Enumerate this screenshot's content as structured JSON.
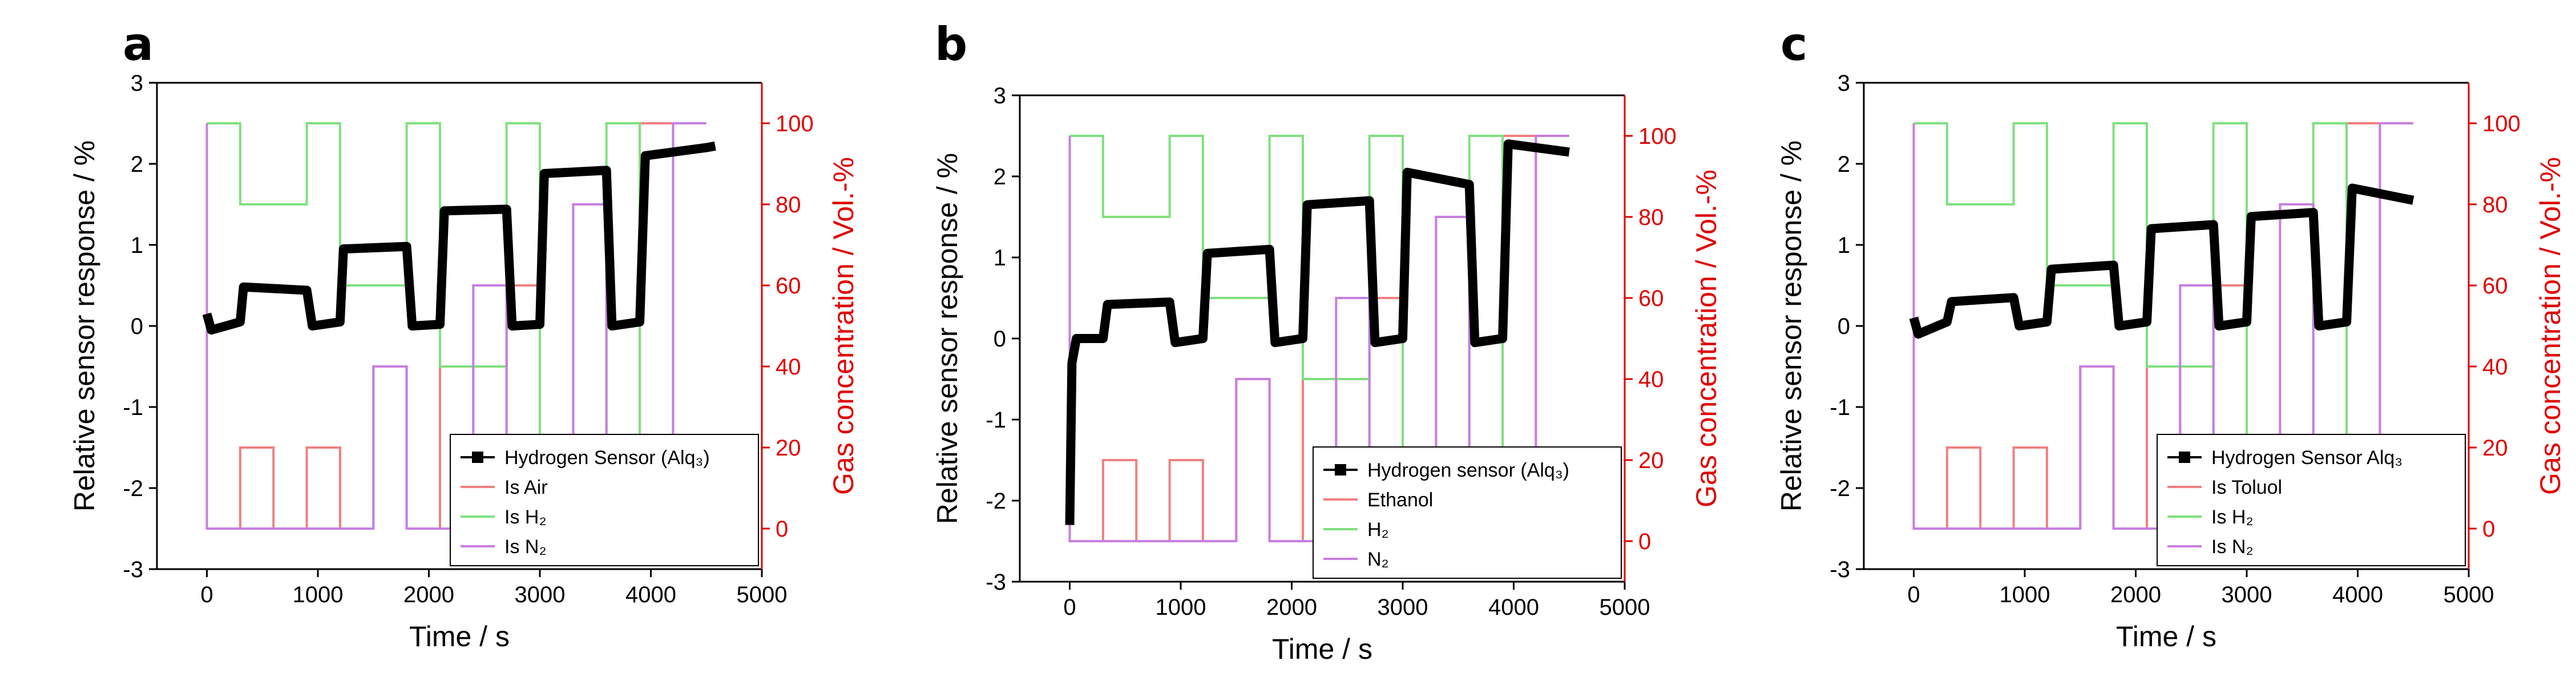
{
  "chart_data": [
    {
      "panel": "a",
      "type": "line",
      "xlabel": "Time / s",
      "ylabel": "Relative sensor response / %",
      "y2label": "Gas concentration / Vol.-%",
      "xlim": [
        -450,
        5000
      ],
      "ylim": [
        -3,
        3
      ],
      "y2lim": [
        -10,
        110
      ],
      "xticks": [
        "0",
        "1000",
        "2000",
        "3000",
        "4000",
        "5000"
      ],
      "yticks": [
        "-3",
        "-2",
        "-1",
        "0",
        "1",
        "2",
        "3"
      ],
      "y2ticks": [
        "0",
        "20",
        "40",
        "60",
        "80",
        "100"
      ],
      "legend": [
        {
          "label": "Hydrogen Sensor (Alq₃)",
          "key": "sensor"
        },
        {
          "label": "Is Air",
          "key": "gas1"
        },
        {
          "label": "Is H₂",
          "key": "h2"
        },
        {
          "label": "Is N₂",
          "key": "n2"
        }
      ],
      "sensor": {
        "x": [
          0,
          40,
          300,
          330,
          900,
          950,
          1200,
          1230,
          1800,
          1850,
          2100,
          2140,
          2700,
          2750,
          3000,
          3040,
          3600,
          3650,
          3900,
          3950,
          4500,
          4580
        ],
        "y": [
          0.15,
          -0.05,
          0.05,
          0.48,
          0.44,
          0.0,
          0.05,
          0.95,
          0.98,
          0.0,
          0.02,
          1.42,
          1.44,
          0.0,
          0.02,
          1.88,
          1.92,
          0.0,
          0.05,
          2.1,
          2.2,
          2.22
        ]
      },
      "gas1": {
        "x": [
          0,
          0,
          300,
          300,
          600,
          600,
          900,
          900,
          1200,
          1200,
          1500,
          1500,
          1800,
          1800,
          2100,
          2100,
          2400,
          2400,
          2700,
          2700,
          3000,
          3000,
          3300,
          3300,
          3600,
          3600,
          3900,
          3900,
          4200,
          4200,
          4500
        ],
        "y": [
          100,
          0,
          0,
          20,
          20,
          0,
          0,
          20,
          20,
          0,
          0,
          40,
          40,
          0,
          0,
          40,
          40,
          0,
          0,
          60,
          60,
          0,
          0,
          80,
          80,
          0,
          0,
          100,
          100,
          0,
          0
        ]
      },
      "h2": {
        "x": [
          0,
          300,
          300,
          900,
          900,
          1200,
          1200,
          1800,
          1800,
          2100,
          2100,
          2700,
          2700,
          3000,
          3000,
          3600,
          3600,
          3900,
          3900,
          4500
        ],
        "y": [
          100,
          100,
          80,
          80,
          100,
          100,
          60,
          60,
          100,
          100,
          40,
          40,
          100,
          100,
          20,
          20,
          100,
          100,
          0,
          0
        ]
      },
      "n2": {
        "x": [
          0,
          0,
          1500,
          1500,
          1800,
          1800,
          2400,
          2400,
          2700,
          2700,
          3300,
          3300,
          3600,
          3600,
          4200,
          4200,
          4500
        ],
        "y": [
          100,
          0,
          0,
          40,
          40,
          0,
          0,
          60,
          60,
          0,
          0,
          80,
          80,
          0,
          0,
          100,
          100
        ]
      }
    },
    {
      "panel": "b",
      "type": "line",
      "xlabel": "Time / s",
      "ylabel": "Relative sensor response / %",
      "y2label": "Gas concentration / Vol.-%",
      "xlim": [
        -450,
        5000
      ],
      "ylim": [
        -3,
        3
      ],
      "y2lim": [
        -10,
        110
      ],
      "xticks": [
        "0",
        "1000",
        "2000",
        "3000",
        "4000",
        "5000"
      ],
      "yticks": [
        "-3",
        "-2",
        "-1",
        "0",
        "1",
        "2",
        "3"
      ],
      "y2ticks": [
        "0",
        "20",
        "40",
        "60",
        "80",
        "100"
      ],
      "legend": [
        {
          "label": "Hydrogen sensor (Alq₃)",
          "key": "sensor"
        },
        {
          "label": "Ethanol",
          "key": "gas1"
        },
        {
          "label": "H₂",
          "key": "h2"
        },
        {
          "label": "N₂",
          "key": "n2"
        }
      ],
      "sensor": {
        "x": [
          0,
          20,
          60,
          300,
          340,
          900,
          950,
          1200,
          1240,
          1800,
          1850,
          2100,
          2140,
          2700,
          2750,
          3000,
          3040,
          3600,
          3650,
          3900,
          3950,
          4500
        ],
        "y": [
          -2.3,
          -0.3,
          0.0,
          0.0,
          0.42,
          0.45,
          -0.05,
          0.0,
          1.05,
          1.1,
          -0.05,
          0.0,
          1.65,
          1.7,
          -0.05,
          0.0,
          2.05,
          1.9,
          -0.05,
          0.0,
          2.4,
          2.3
        ]
      },
      "gas1": {
        "x": [
          0,
          0,
          300,
          300,
          600,
          600,
          900,
          900,
          1200,
          1200,
          1500,
          1500,
          1800,
          1800,
          2100,
          2100,
          2400,
          2400,
          2700,
          2700,
          3000,
          3000,
          3300,
          3300,
          3600,
          3600,
          3900,
          3900,
          4200,
          4200,
          4500
        ],
        "y": [
          100,
          0,
          0,
          20,
          20,
          0,
          0,
          20,
          20,
          0,
          0,
          40,
          40,
          0,
          0,
          40,
          40,
          0,
          0,
          60,
          60,
          0,
          0,
          80,
          80,
          0,
          0,
          100,
          100,
          0,
          0
        ]
      },
      "h2": {
        "x": [
          0,
          300,
          300,
          900,
          900,
          1200,
          1200,
          1800,
          1800,
          2100,
          2100,
          2700,
          2700,
          3000,
          3000,
          3600,
          3600,
          3900,
          3900,
          4500
        ],
        "y": [
          100,
          100,
          80,
          80,
          100,
          100,
          60,
          60,
          100,
          100,
          40,
          40,
          100,
          100,
          20,
          20,
          100,
          100,
          0,
          0
        ]
      },
      "n2": {
        "x": [
          0,
          0,
          1500,
          1500,
          1800,
          1800,
          2400,
          2400,
          2700,
          2700,
          3300,
          3300,
          3600,
          3600,
          4200,
          4200,
          4500
        ],
        "y": [
          100,
          0,
          0,
          40,
          40,
          0,
          0,
          60,
          60,
          0,
          0,
          80,
          80,
          0,
          0,
          100,
          100
        ]
      }
    },
    {
      "panel": "c",
      "type": "line",
      "xlabel": "Time / s",
      "ylabel": "Relative sensor response / %",
      "y2label": "Gas concentration / Vol.-%",
      "xlim": [
        -450,
        5000
      ],
      "ylim": [
        -3,
        3
      ],
      "y2lim": [
        -10,
        110
      ],
      "xticks": [
        "0",
        "1000",
        "2000",
        "3000",
        "4000",
        "5000"
      ],
      "yticks": [
        "-3",
        "-2",
        "-1",
        "0",
        "1",
        "2",
        "3"
      ],
      "y2ticks": [
        "0",
        "20",
        "40",
        "60",
        "80",
        "100"
      ],
      "legend": [
        {
          "label": "Hydrogen Sensor Alq₃",
          "key": "sensor"
        },
        {
          "label": "Is Toluol",
          "key": "gas1"
        },
        {
          "label": "Is H₂",
          "key": "h2"
        },
        {
          "label": "Is N₂",
          "key": "n2"
        }
      ],
      "sensor": {
        "x": [
          0,
          40,
          300,
          340,
          900,
          950,
          1200,
          1240,
          1800,
          1850,
          2100,
          2140,
          2700,
          2750,
          3000,
          3040,
          3600,
          3650,
          3900,
          3950,
          4500
        ],
        "y": [
          0.1,
          -0.1,
          0.05,
          0.3,
          0.35,
          0.0,
          0.05,
          0.7,
          0.75,
          0.0,
          0.05,
          1.2,
          1.25,
          0.0,
          0.05,
          1.35,
          1.4,
          0.0,
          0.05,
          1.7,
          1.55
        ]
      },
      "gas1": {
        "x": [
          0,
          0,
          300,
          300,
          600,
          600,
          900,
          900,
          1200,
          1200,
          1500,
          1500,
          1800,
          1800,
          2100,
          2100,
          2400,
          2400,
          2700,
          2700,
          3000,
          3000,
          3300,
          3300,
          3600,
          3600,
          3900,
          3900,
          4200,
          4200,
          4500
        ],
        "y": [
          100,
          0,
          0,
          20,
          20,
          0,
          0,
          20,
          20,
          0,
          0,
          40,
          40,
          0,
          0,
          40,
          40,
          0,
          0,
          60,
          60,
          0,
          0,
          80,
          80,
          0,
          0,
          100,
          100,
          0,
          0
        ]
      },
      "h2": {
        "x": [
          0,
          300,
          300,
          900,
          900,
          1200,
          1200,
          1800,
          1800,
          2100,
          2100,
          2700,
          2700,
          3000,
          3000,
          3600,
          3600,
          3900,
          3900,
          4500
        ],
        "y": [
          100,
          100,
          80,
          80,
          100,
          100,
          60,
          60,
          100,
          100,
          40,
          40,
          100,
          100,
          20,
          20,
          100,
          100,
          0,
          0
        ]
      },
      "n2": {
        "x": [
          0,
          0,
          1500,
          1500,
          1800,
          1800,
          2400,
          2400,
          2700,
          2700,
          3300,
          3300,
          3600,
          3600,
          4200,
          4200,
          4500
        ],
        "y": [
          100,
          0,
          0,
          40,
          40,
          0,
          0,
          60,
          60,
          0,
          0,
          80,
          80,
          0,
          0,
          100,
          100
        ]
      }
    }
  ],
  "colors": {
    "sensor": "#000000",
    "gas1": "#f08080",
    "h2": "#7fe07f",
    "n2": "#c77fe0",
    "right_axis": "#e00000"
  }
}
